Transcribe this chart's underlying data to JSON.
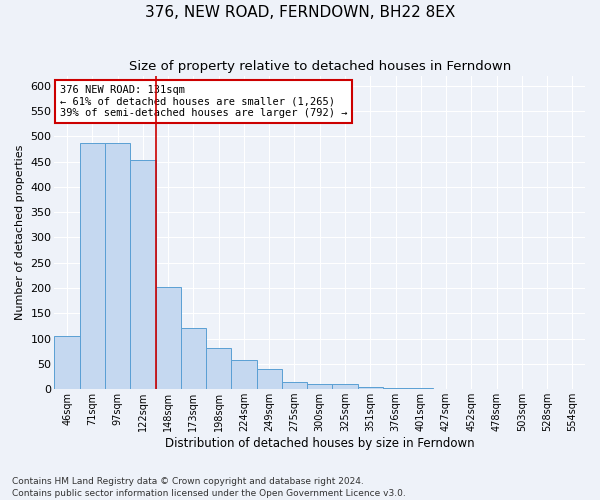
{
  "title": "376, NEW ROAD, FERNDOWN, BH22 8EX",
  "subtitle": "Size of property relative to detached houses in Ferndown",
  "xlabel": "Distribution of detached houses by size in Ferndown",
  "ylabel": "Number of detached properties",
  "categories": [
    "46sqm",
    "71sqm",
    "97sqm",
    "122sqm",
    "148sqm",
    "173sqm",
    "198sqm",
    "224sqm",
    "249sqm",
    "275sqm",
    "300sqm",
    "325sqm",
    "351sqm",
    "376sqm",
    "401sqm",
    "427sqm",
    "452sqm",
    "478sqm",
    "503sqm",
    "528sqm",
    "554sqm"
  ],
  "values": [
    105,
    487,
    487,
    453,
    201,
    120,
    82,
    57,
    40,
    15,
    10,
    10,
    5,
    3,
    2,
    1,
    1,
    1,
    1,
    0,
    0
  ],
  "bar_color": "#c5d8f0",
  "bar_edge_color": "#5a9fd4",
  "vline_x_index": 3.5,
  "vline_color": "#cc0000",
  "annotation_text": "376 NEW ROAD: 131sqm\n← 61% of detached houses are smaller (1,265)\n39% of semi-detached houses are larger (792) →",
  "annotation_box_color": "#ffffff",
  "annotation_box_edge_color": "#cc0000",
  "ylim": [
    0,
    620
  ],
  "yticks": [
    0,
    50,
    100,
    150,
    200,
    250,
    300,
    350,
    400,
    450,
    500,
    550,
    600
  ],
  "footnote": "Contains HM Land Registry data © Crown copyright and database right 2024.\nContains public sector information licensed under the Open Government Licence v3.0.",
  "title_fontsize": 11,
  "subtitle_fontsize": 9.5,
  "xlabel_fontsize": 8.5,
  "ylabel_fontsize": 8,
  "tick_fontsize": 8,
  "annotation_fontsize": 7.5,
  "footnote_fontsize": 6.5,
  "fig_bg_color": "#eef2f9",
  "plot_bg_color": "#eef2f9"
}
